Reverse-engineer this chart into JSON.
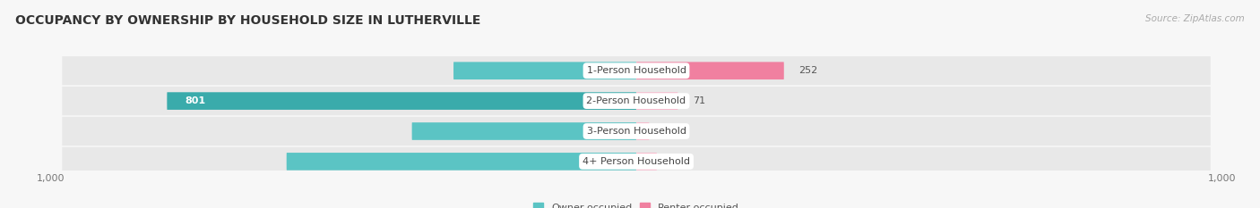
{
  "title": "OCCUPANCY BY OWNERSHIP BY HOUSEHOLD SIZE IN LUTHERVILLE",
  "source": "Source: ZipAtlas.com",
  "categories": [
    "1-Person Household",
    "2-Person Household",
    "3-Person Household",
    "4+ Person Household"
  ],
  "owner_values": [
    312,
    801,
    383,
    597
  ],
  "renter_values": [
    252,
    71,
    22,
    35
  ],
  "max_scale": 1000,
  "owner_color": "#5bc4c4",
  "owner_color_dark": "#3aabab",
  "renter_color": "#f080a0",
  "renter_color_light": "#f8b8cb",
  "row_bg_color": "#e8e8e8",
  "fig_bg_color": "#f7f7f7",
  "title_fontsize": 10,
  "source_fontsize": 7.5,
  "bar_fontsize": 8,
  "cat_fontsize": 8,
  "tick_fontsize": 8,
  "legend_fontsize": 8,
  "tick_label": "1,000",
  "legend_owner": "Owner-occupied",
  "legend_renter": "Renter-occupied"
}
